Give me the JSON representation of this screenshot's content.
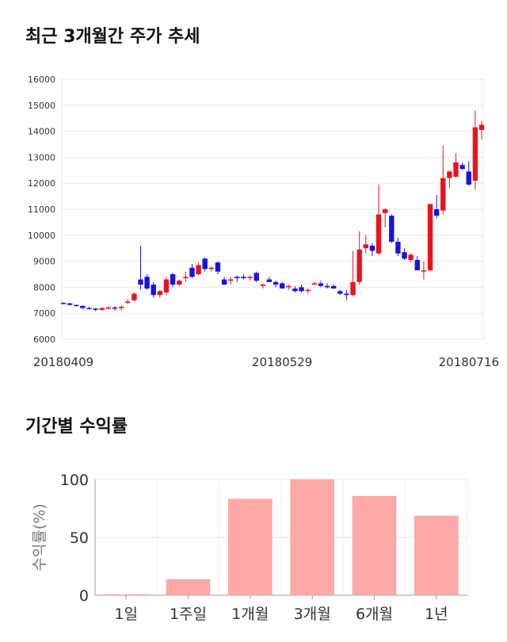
{
  "titles": {
    "price_trend": "최근 3개월간 주가 추세",
    "period_return": "기간별 수익률"
  },
  "chart_data": [
    {
      "type": "candlestick",
      "title": "최근 3개월간 주가 추세",
      "ylim": [
        6000,
        16000
      ],
      "y_ticks": [
        6000,
        7000,
        8000,
        9000,
        10000,
        11000,
        12000,
        13000,
        14000,
        15000,
        16000
      ],
      "x_tick_labels": [
        {
          "index": 0,
          "label": "20180409"
        },
        {
          "index": 34,
          "label": "20180529"
        },
        {
          "index": 67,
          "label": "20180716"
        }
      ],
      "grid": true,
      "up_color": "#e8141c",
      "down_color": "#1a14d8",
      "candles": [
        [
          7400,
          7420,
          7350,
          7380
        ],
        [
          7380,
          7400,
          7300,
          7320
        ],
        [
          7320,
          7340,
          7250,
          7280
        ],
        [
          7280,
          7300,
          7150,
          7200
        ],
        [
          7200,
          7250,
          7150,
          7180
        ],
        [
          7180,
          7200,
          7080,
          7130
        ],
        [
          7130,
          7220,
          7100,
          7200
        ],
        [
          7200,
          7280,
          7150,
          7220
        ],
        [
          7220,
          7260,
          7100,
          7200
        ],
        [
          7200,
          7300,
          7100,
          7250
        ],
        [
          7400,
          7550,
          7350,
          7450
        ],
        [
          7500,
          7800,
          7450,
          7750
        ],
        [
          8300,
          9600,
          7900,
          8100
        ],
        [
          8400,
          8500,
          7900,
          7950
        ],
        [
          8100,
          8200,
          7600,
          7700
        ],
        [
          7700,
          7900,
          7600,
          7850
        ],
        [
          7800,
          8400,
          7700,
          8300
        ],
        [
          8500,
          8550,
          8000,
          8100
        ],
        [
          8100,
          8300,
          8050,
          8250
        ],
        [
          8350,
          8600,
          8200,
          8400
        ],
        [
          8750,
          8900,
          8350,
          8400
        ],
        [
          8500,
          8950,
          8450,
          8850
        ],
        [
          9100,
          9150,
          8600,
          8700
        ],
        [
          8700,
          8800,
          8600,
          8750
        ],
        [
          8950,
          9000,
          8500,
          8600
        ],
        [
          8300,
          8400,
          8100,
          8100
        ],
        [
          8250,
          8400,
          8100,
          8300
        ],
        [
          8400,
          8450,
          8200,
          8350
        ],
        [
          8400,
          8500,
          8300,
          8350
        ],
        [
          8350,
          8450,
          8250,
          8400
        ],
        [
          8550,
          8600,
          8200,
          8250
        ],
        [
          8050,
          8150,
          7950,
          8100
        ],
        [
          8300,
          8400,
          8200,
          8200
        ],
        [
          8200,
          8250,
          8000,
          8100
        ],
        [
          8150,
          8200,
          7950,
          7950
        ],
        [
          8000,
          8100,
          7900,
          8050
        ],
        [
          7950,
          8050,
          7800,
          7850
        ],
        [
          8000,
          8100,
          7800,
          7850
        ],
        [
          7850,
          7950,
          7750,
          7900
        ],
        [
          8150,
          8200,
          8100,
          8150
        ],
        [
          8150,
          8250,
          8000,
          8050
        ],
        [
          8050,
          8150,
          7950,
          8000
        ],
        [
          8050,
          8100,
          7950,
          7950
        ],
        [
          7850,
          7900,
          7700,
          7750
        ],
        [
          7750,
          7900,
          7500,
          7700
        ],
        [
          7700,
          9400,
          7650,
          8200
        ],
        [
          8200,
          10150,
          8100,
          9450
        ],
        [
          9500,
          10000,
          9300,
          9650
        ],
        [
          9600,
          9700,
          9200,
          9400
        ],
        [
          9300,
          11950,
          9250,
          10800
        ],
        [
          10850,
          11050,
          10300,
          11000
        ],
        [
          10750,
          10800,
          9700,
          9750
        ],
        [
          9750,
          9900,
          9200,
          9300
        ],
        [
          9350,
          9500,
          9050,
          9100
        ],
        [
          9050,
          9300,
          8950,
          9250
        ],
        [
          9050,
          9200,
          8650,
          8650
        ],
        [
          8650,
          9000,
          8300,
          8650
        ],
        [
          8650,
          11200,
          8600,
          11200
        ],
        [
          11000,
          11550,
          10650,
          10750
        ],
        [
          10950,
          13450,
          10800,
          12200
        ],
        [
          12200,
          12500,
          11800,
          12450
        ],
        [
          12250,
          13150,
          12200,
          12800
        ],
        [
          12700,
          12800,
          12500,
          12550
        ],
        [
          12450,
          12850,
          11900,
          11950
        ],
        [
          12100,
          14800,
          11750,
          14150
        ],
        [
          14050,
          14400,
          13700,
          14250
        ]
      ]
    },
    {
      "type": "bar",
      "title": "기간별 수익률",
      "ylabel": "수익률(%)",
      "categories": [
        "1일",
        "1주일",
        "1개월",
        "3개월",
        "6개월",
        "1년"
      ],
      "values": [
        0.5,
        13.5,
        83,
        100,
        85.5,
        68.5
      ],
      "ylim": [
        0,
        100
      ],
      "y_ticks": [
        0,
        50,
        100
      ],
      "bar_color": "#ffa8a8",
      "grid": true
    }
  ]
}
